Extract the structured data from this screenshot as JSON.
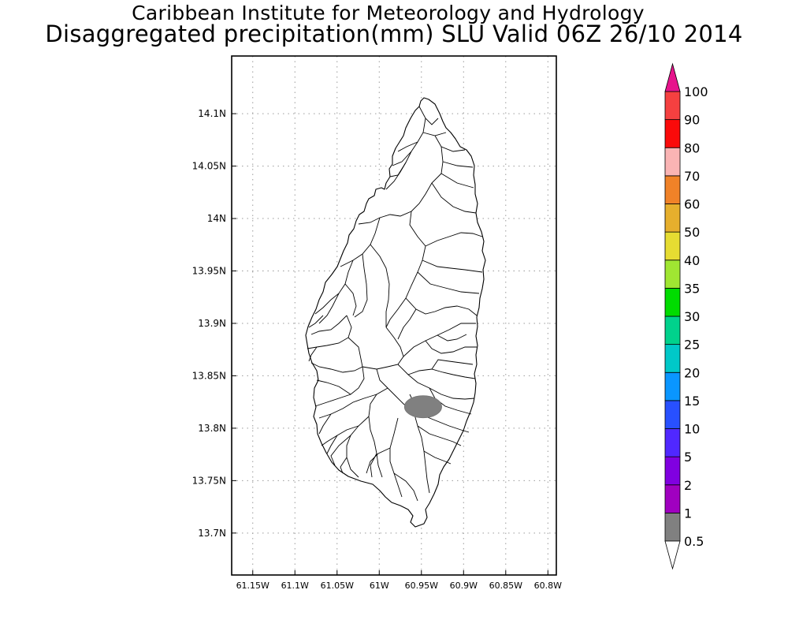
{
  "title": {
    "line1": "Caribbean Institute for Meteorology and Hydrology",
    "line2": "Disaggregated precipitation(mm) SLU Valid 06Z 26/10 2014"
  },
  "map": {
    "lon_range": [
      -61.175,
      -60.79
    ],
    "lat_range": [
      13.66,
      14.155
    ],
    "lon_ticks": [
      {
        "value": -61.15,
        "label": "61.15W"
      },
      {
        "value": -61.1,
        "label": "61.1W"
      },
      {
        "value": -61.05,
        "label": "61.05W"
      },
      {
        "value": -61.0,
        "label": "61W"
      },
      {
        "value": -60.95,
        "label": "60.95W"
      },
      {
        "value": -60.9,
        "label": "60.9W"
      },
      {
        "value": -60.85,
        "label": "60.85W"
      },
      {
        "value": -60.8,
        "label": "60.8W"
      }
    ],
    "lat_ticks": [
      {
        "value": 13.7,
        "label": "13.7N"
      },
      {
        "value": 13.75,
        "label": "13.75N"
      },
      {
        "value": 13.8,
        "label": "13.8N"
      },
      {
        "value": 13.85,
        "label": "13.85N"
      },
      {
        "value": 13.9,
        "label": "13.9N"
      },
      {
        "value": 13.95,
        "label": "13.95N"
      },
      {
        "value": 14.0,
        "label": "14N"
      },
      {
        "value": 14.05,
        "label": "14.05N"
      },
      {
        "value": 14.1,
        "label": "14.1N"
      }
    ],
    "grid": true,
    "precip_patch": {
      "center_lon": -60.948,
      "center_lat": 13.8205,
      "rx_deg": 0.022,
      "ry_deg": 0.0105,
      "color": "#808080",
      "class_label": "0.5-1"
    }
  },
  "colorbar": {
    "labels": [
      "0.5",
      "1",
      "2",
      "5",
      "10",
      "15",
      "20",
      "25",
      "30",
      "35",
      "40",
      "50",
      "60",
      "70",
      "80",
      "90",
      "100"
    ],
    "colors": [
      "#808080",
      "#a000c0",
      "#8000e0",
      "#5028ff",
      "#2850ff",
      "#0a96ff",
      "#00c8c8",
      "#00d28c",
      "#00dc00",
      "#a0e632",
      "#e6dc32",
      "#e6af2d",
      "#f08228",
      "#fab4b4",
      "#fa0a0a",
      "#f54040"
    ],
    "over_color": "#e6148c",
    "under_color": "#ffffff"
  }
}
